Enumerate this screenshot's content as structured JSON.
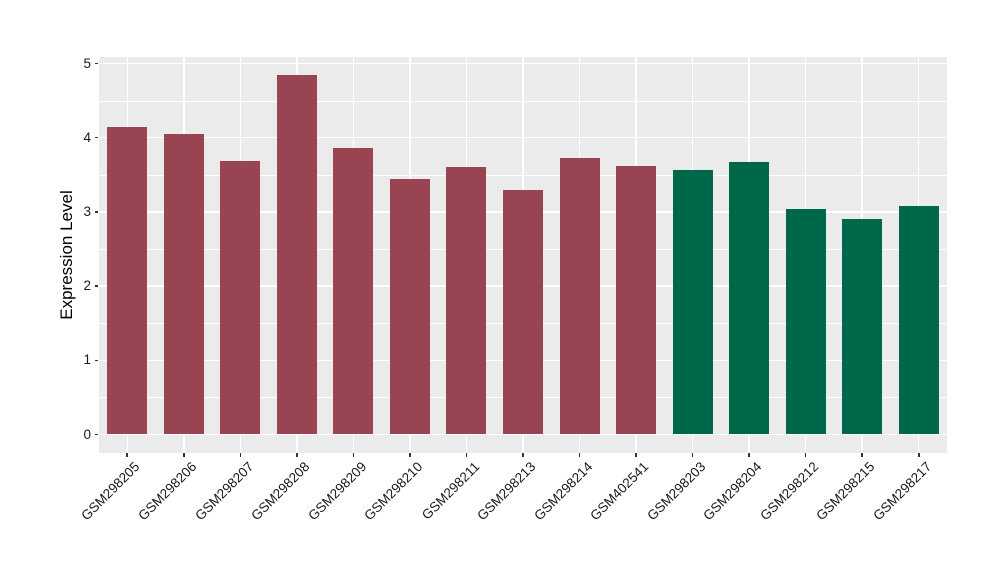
{
  "chart_data": {
    "type": "bar",
    "title": "",
    "xlabel": "",
    "ylabel": "Expression Level",
    "ylim": [
      0,
      5
    ],
    "yticks": [
      0,
      1,
      2,
      3,
      4,
      5
    ],
    "grid": "white major and minor horizontal gridlines plus vertical gridlines at category centers on grey panel",
    "legend_position": "none",
    "categories": [
      "GSM298205",
      "GSM298206",
      "GSM298207",
      "GSM298208",
      "GSM298209",
      "GSM298210",
      "GSM298211",
      "GSM298213",
      "GSM298214",
      "GSM402541",
      "GSM298203",
      "GSM298204",
      "GSM298212",
      "GSM298215",
      "GSM298217"
    ],
    "values": [
      4.15,
      4.05,
      3.68,
      4.84,
      3.86,
      3.44,
      3.6,
      3.3,
      3.73,
      3.62,
      3.57,
      3.67,
      3.04,
      2.91,
      3.08
    ],
    "bar_colors": [
      "#994453",
      "#994453",
      "#994453",
      "#994453",
      "#994453",
      "#994453",
      "#994453",
      "#994453",
      "#994453",
      "#994453",
      "#00684A",
      "#00684A",
      "#00684A",
      "#00684A",
      "#00684A"
    ]
  },
  "style": {
    "panel_background": "#EBEBEB",
    "grid_color": "#FFFFFF",
    "tick_color": "#333333",
    "text_color": "#1A1A1A",
    "group1_color": "#994453",
    "group2_color": "#00684A"
  }
}
